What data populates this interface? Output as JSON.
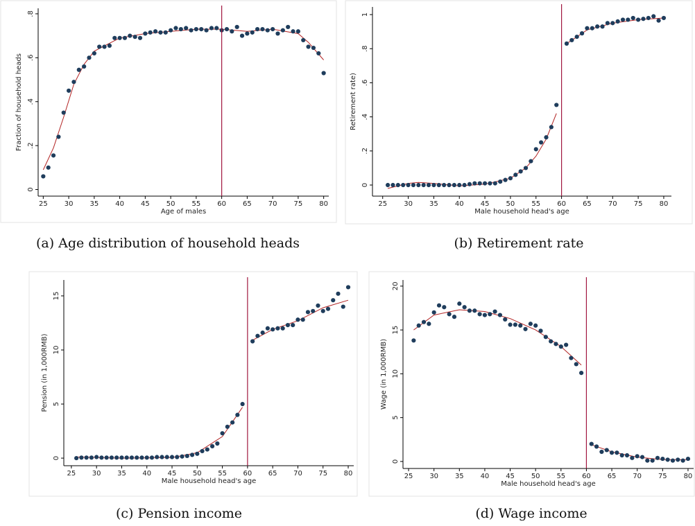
{
  "chart_data": [
    {
      "type": "scatter",
      "caption": "(a) Age distribution of household heads",
      "xlabel": "Age of males",
      "ylabel": "Fraction of household heads",
      "xlim": [
        24,
        81
      ],
      "ylim": [
        -0.03,
        0.825
      ],
      "xticks": [
        25,
        30,
        35,
        40,
        45,
        50,
        55,
        60,
        65,
        70,
        75,
        80
      ],
      "yticks": [
        0,
        {
          "value": 0.2,
          "label": ".2"
        },
        {
          "value": 0.4,
          "label": ".4"
        },
        {
          "value": 0.6,
          "label": ".6"
        },
        {
          "value": 0.8,
          "label": ".8"
        }
      ],
      "points": {
        "color": "#1f3d5c",
        "x": [
          25,
          26,
          27,
          28,
          29,
          30,
          31,
          32,
          33,
          34,
          35,
          36,
          37,
          38,
          39,
          40,
          41,
          42,
          43,
          44,
          45,
          46,
          47,
          48,
          49,
          50,
          51,
          52,
          53,
          54,
          55,
          56,
          57,
          58,
          59,
          60,
          61,
          62,
          63,
          64,
          65,
          66,
          67,
          68,
          69,
          70,
          71,
          72,
          73,
          74,
          75,
          76,
          77,
          78,
          79,
          80
        ],
        "values": [
          0.06,
          0.1,
          0.155,
          0.24,
          0.35,
          0.45,
          0.49,
          0.545,
          0.56,
          0.6,
          0.62,
          0.65,
          0.65,
          0.655,
          0.69,
          0.69,
          0.69,
          0.7,
          0.695,
          0.69,
          0.71,
          0.715,
          0.72,
          0.715,
          0.715,
          0.725,
          0.735,
          0.73,
          0.735,
          0.725,
          0.73,
          0.73,
          0.725,
          0.735,
          0.735,
          0.725,
          0.73,
          0.72,
          0.74,
          0.7,
          0.71,
          0.715,
          0.73,
          0.73,
          0.725,
          0.73,
          0.71,
          0.725,
          0.74,
          0.72,
          0.72,
          0.68,
          0.65,
          0.645,
          0.62,
          0.53
        ]
      },
      "fit": {
        "color": "#b22222",
        "x": [
          25,
          27,
          29,
          31,
          33,
          35,
          40,
          45,
          50,
          55,
          60,
          65,
          70,
          75,
          77,
          80
        ],
        "values": [
          0.09,
          0.19,
          0.33,
          0.48,
          0.57,
          0.63,
          0.69,
          0.71,
          0.72,
          0.73,
          0.73,
          0.72,
          0.73,
          0.71,
          0.67,
          0.59
        ]
      },
      "vline": 60,
      "vline_color": "#a0153e"
    },
    {
      "type": "scatter",
      "caption": "(b) Retirement rate",
      "xlabel": "Male household head's age",
      "ylabel": "Retirement rate)",
      "xlim": [
        23,
        81.5
      ],
      "ylim": [
        -0.065,
        1.045
      ],
      "xticks": [
        25,
        30,
        35,
        40,
        45,
        50,
        55,
        60,
        65,
        70,
        75,
        80
      ],
      "yticks": [
        0,
        {
          "value": 0.2,
          "label": ".2"
        },
        {
          "value": 0.4,
          "label": ".4"
        },
        {
          "value": 0.6,
          "label": ".6"
        },
        {
          "value": 0.8,
          "label": ".8"
        },
        1
      ],
      "points": {
        "color": "#1f3d5c",
        "x": [
          26,
          27,
          28,
          29,
          30,
          31,
          32,
          33,
          34,
          35,
          36,
          37,
          38,
          39,
          40,
          41,
          42,
          43,
          44,
          45,
          46,
          47,
          48,
          49,
          50,
          51,
          52,
          53,
          54,
          55,
          56,
          57,
          58,
          59,
          61,
          62,
          63,
          64,
          65,
          66,
          67,
          68,
          69,
          70,
          71,
          72,
          73,
          74,
          75,
          76,
          77,
          78,
          79,
          80
        ],
        "values": [
          0,
          0,
          0,
          0,
          0,
          0,
          0,
          0,
          0,
          0,
          0,
          0,
          0,
          0,
          0,
          0,
          0.005,
          0.01,
          0.01,
          0.01,
          0.01,
          0.01,
          0.02,
          0.03,
          0.04,
          0.06,
          0.08,
          0.1,
          0.14,
          0.21,
          0.25,
          0.28,
          0.34,
          0.47,
          0.83,
          0.85,
          0.87,
          0.89,
          0.92,
          0.92,
          0.93,
          0.93,
          0.95,
          0.95,
          0.96,
          0.97,
          0.97,
          0.98,
          0.97,
          0.975,
          0.98,
          0.99,
          0.965,
          0.98
        ]
      },
      "fit": {
        "color": "#b22222",
        "x": [
          26,
          30,
          32,
          35,
          40,
          45,
          50,
          53,
          55,
          57,
          59,
          60,
          61,
          65,
          70,
          75,
          80
        ],
        "values": [
          -0.02,
          0.01,
          0.015,
          0.01,
          -0.005,
          0.005,
          0.04,
          0.1,
          0.17,
          0.27,
          0.42,
          null,
          0.83,
          0.91,
          0.95,
          0.97,
          0.98
        ]
      },
      "vline": 60,
      "vline_color": "#a0153e"
    },
    {
      "type": "scatter",
      "caption": "(c) Pension income",
      "xlabel": "Male household head's age",
      "ylabel": "Pension (in 1,000RMB)",
      "xlim": [
        23.5,
        81.1
      ],
      "ylim": [
        -0.7,
        16.47
      ],
      "xticks": [
        25,
        30,
        35,
        40,
        45,
        50,
        55,
        60,
        65,
        70,
        75,
        80
      ],
      "yticks": [
        0,
        5,
        10,
        15
      ],
      "points": {
        "color": "#1f3d5c",
        "x": [
          26,
          27,
          28,
          29,
          30,
          31,
          32,
          33,
          34,
          35,
          36,
          37,
          38,
          39,
          40,
          41,
          42,
          43,
          44,
          45,
          46,
          47,
          48,
          49,
          50,
          51,
          52,
          53,
          54,
          55,
          56,
          57,
          58,
          59,
          61,
          62,
          63,
          64,
          65,
          66,
          67,
          68,
          69,
          70,
          71,
          72,
          73,
          74,
          75,
          76,
          77,
          78,
          79,
          80
        ],
        "values": [
          0,
          0.05,
          0.05,
          0.05,
          0.1,
          0.05,
          0.05,
          0.05,
          0.05,
          0.05,
          0.05,
          0.05,
          0.05,
          0.05,
          0.05,
          0.05,
          0.1,
          0.1,
          0.1,
          0.1,
          0.1,
          0.15,
          0.2,
          0.3,
          0.4,
          0.65,
          0.8,
          1.1,
          1.35,
          2.3,
          2.9,
          3.3,
          4.0,
          5.0,
          10.8,
          11.3,
          11.6,
          12.0,
          11.9,
          12.0,
          12.0,
          12.3,
          12.3,
          12.8,
          12.8,
          13.5,
          13.6,
          14.1,
          13.6,
          13.8,
          14.6,
          15.2,
          14.0,
          15.8
        ]
      },
      "fit": {
        "color": "#b22222",
        "x": [
          26,
          35,
          45,
          50,
          55,
          59,
          60,
          61,
          65,
          70,
          75,
          80
        ],
        "values": [
          0.1,
          0.0,
          0.05,
          0.5,
          2.0,
          4.7,
          null,
          10.9,
          11.9,
          12.7,
          13.9,
          14.6
        ]
      },
      "vline": 60,
      "vline_color": "#a0153e"
    },
    {
      "type": "scatter",
      "caption": "(d) Wage income",
      "xlabel": "Male household head's age",
      "ylabel": "Wage (in 1,000RMB)",
      "xlim": [
        23.9,
        81.1
      ],
      "ylim": [
        -0.8,
        20.7
      ],
      "xticks": [
        25,
        30,
        35,
        40,
        45,
        50,
        55,
        60,
        65,
        70,
        75,
        80
      ],
      "yticks": [
        0,
        5,
        10,
        15,
        20
      ],
      "points": {
        "color": "#1f3d5c",
        "x": [
          26,
          27,
          28,
          29,
          30,
          31,
          32,
          33,
          34,
          35,
          36,
          37,
          38,
          39,
          40,
          41,
          42,
          43,
          44,
          45,
          46,
          47,
          48,
          49,
          50,
          51,
          52,
          53,
          54,
          55,
          56,
          57,
          58,
          59,
          61,
          62,
          63,
          64,
          65,
          66,
          67,
          68,
          69,
          70,
          71,
          72,
          73,
          74,
          75,
          76,
          77,
          78,
          79,
          80
        ],
        "values": [
          13.8,
          15.5,
          15.9,
          15.7,
          17.0,
          17.8,
          17.6,
          16.8,
          16.5,
          18.0,
          17.6,
          17.2,
          17.2,
          16.8,
          16.7,
          16.8,
          17.1,
          16.7,
          16.2,
          15.6,
          15.6,
          15.5,
          15.1,
          15.7,
          15.5,
          14.9,
          14.2,
          13.7,
          13.4,
          13.1,
          13.3,
          11.8,
          11.1,
          10.1,
          2.0,
          1.7,
          1.1,
          1.3,
          1.0,
          1.0,
          0.7,
          0.7,
          0.4,
          0.6,
          0.5,
          0.1,
          0.1,
          0.4,
          0.3,
          0.2,
          0.1,
          0.2,
          0.1,
          0.3
        ]
      },
      "fit": {
        "color": "#b22222",
        "x": [
          26,
          30,
          35,
          40,
          45,
          50,
          55,
          59,
          60,
          61,
          65,
          70,
          75,
          80
        ],
        "values": [
          15.0,
          16.7,
          17.3,
          17.1,
          16.3,
          15.0,
          13.1,
          11.0,
          null,
          1.9,
          1.1,
          0.5,
          0.2,
          0.2
        ]
      },
      "vline": 60,
      "vline_color": "#a0153e"
    }
  ]
}
